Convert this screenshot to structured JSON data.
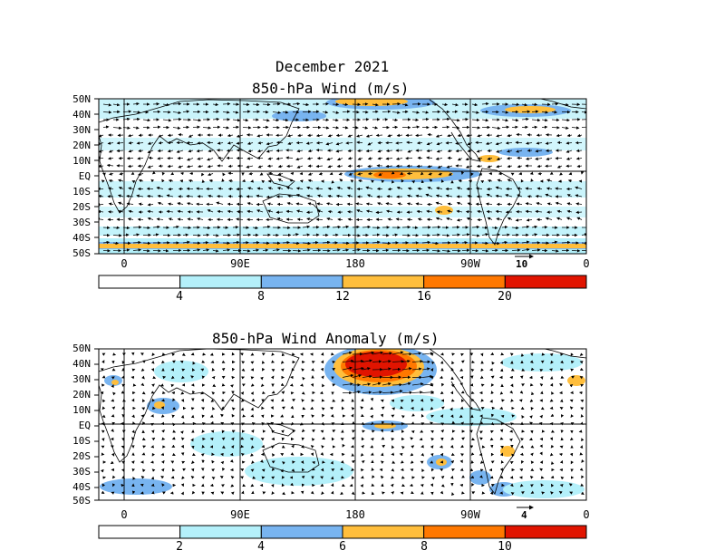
{
  "main_title": "December 2021",
  "panels": [
    {
      "id": "wind",
      "subtitle": "850-hPa Wind (m/s)",
      "lat_labels": [
        "50N",
        "40N",
        "30N",
        "20N",
        "10N",
        "EQ",
        "10S",
        "20S",
        "30S",
        "40S",
        "50S"
      ],
      "lon_labels": [
        "0",
        "90E",
        "180",
        "90W",
        "0"
      ],
      "ref_vector_label": "10",
      "colorbar_ticks": [
        "4",
        "8",
        "12",
        "16",
        "20"
      ],
      "colorbar_colors": [
        "#ffffff",
        "#b4f0fa",
        "#78b4f0",
        "#ffbe3c",
        "#ff7800",
        "#e11400"
      ]
    },
    {
      "id": "anomaly",
      "subtitle": "850-hPa Wind Anomaly (m/s)",
      "lat_labels": [
        "50N",
        "40N",
        "30N",
        "20N",
        "10N",
        "EQ",
        "10S",
        "20S",
        "30S",
        "40S",
        "50S"
      ],
      "lon_labels": [
        "0",
        "90E",
        "180",
        "90W",
        "0"
      ],
      "ref_vector_label": "4",
      "colorbar_ticks": [
        "2",
        "4",
        "6",
        "8",
        "10"
      ],
      "colorbar_colors": [
        "#ffffff",
        "#b4f0fa",
        "#78b4f0",
        "#ffbe3c",
        "#ff7800",
        "#e11400"
      ]
    }
  ]
}
